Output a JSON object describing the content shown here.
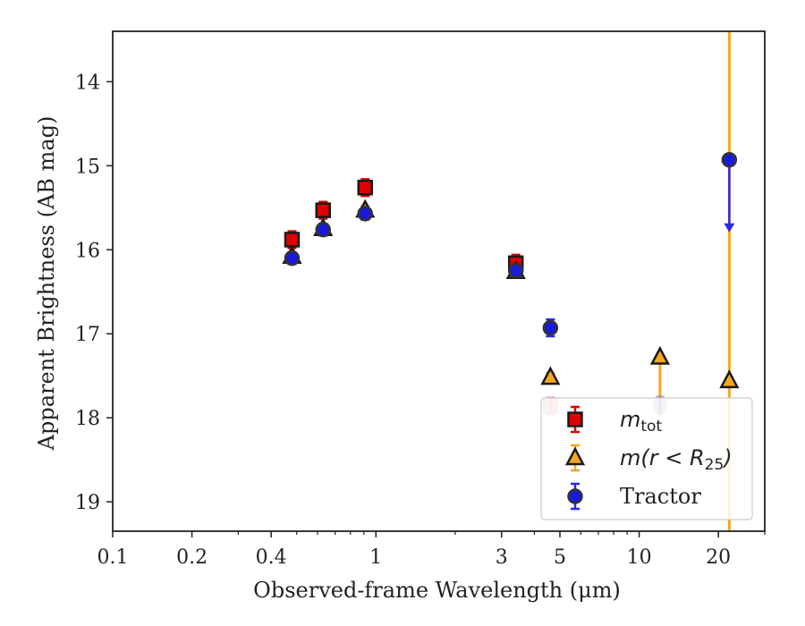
{
  "chart_data": {
    "type": "scatter",
    "xlabel": "Observed-frame Wavelength (μm)",
    "ylabel": "Apparent Brightness (AB mag)",
    "xscale": "log",
    "yaxis_inverted": true,
    "xlim": [
      0.1,
      30
    ],
    "ylim": [
      19.35,
      13.4
    ],
    "x_ticks": [
      {
        "value": 0.1,
        "label": "0.1"
      },
      {
        "value": 0.2,
        "label": "0.2"
      },
      {
        "value": 0.4,
        "label": "0.4"
      },
      {
        "value": 1,
        "label": "1"
      },
      {
        "value": 3,
        "label": "3"
      },
      {
        "value": 5,
        "label": "5"
      },
      {
        "value": 10,
        "label": "10"
      },
      {
        "value": 20,
        "label": "20"
      }
    ],
    "y_ticks": [
      {
        "value": 14,
        "label": "14"
      },
      {
        "value": 15,
        "label": "15"
      },
      {
        "value": 16,
        "label": "16"
      },
      {
        "value": 17,
        "label": "17"
      },
      {
        "value": 18,
        "label": "18"
      },
      {
        "value": 19,
        "label": "19"
      }
    ],
    "grid": false,
    "legend_position": "bottom-right",
    "series": [
      {
        "name": "m_tot",
        "legend_main": "m",
        "legend_sub": "tot",
        "marker": "square",
        "fill": "#e00000",
        "errcolor": "#e00000",
        "points": [
          {
            "x": 0.48,
            "y": 15.88,
            "err": 0.1
          },
          {
            "x": 0.63,
            "y": 15.53,
            "err": 0.1
          },
          {
            "x": 0.91,
            "y": 15.26,
            "err": 0.1
          },
          {
            "x": 3.4,
            "y": 16.16,
            "err": 0.1
          },
          {
            "x": 4.6,
            "y": 17.86,
            "err": 0.1,
            "faded": true
          }
        ]
      },
      {
        "name": "m(r < R_25)",
        "legend_main": "m(r < R",
        "legend_sub": "25",
        "legend_tail": ")",
        "marker": "triangle",
        "fill": "#f5a623",
        "errcolor": "#f5a623",
        "points": [
          {
            "x": 0.48,
            "y": 16.08,
            "err": 0.05
          },
          {
            "x": 0.63,
            "y": 15.75,
            "err": 0.05
          },
          {
            "x": 0.91,
            "y": 15.53,
            "err": 0.05
          },
          {
            "x": 3.4,
            "y": 16.26,
            "err": 0.05
          },
          {
            "x": 4.6,
            "y": 17.52,
            "err": 0.05
          },
          {
            "x": 12.0,
            "y": 17.28,
            "err_low": 0.7,
            "err_high": 0
          },
          {
            "x": 22.0,
            "y": 17.56,
            "full_span": true
          }
        ]
      },
      {
        "name": "Tractor",
        "legend_main": "Tractor",
        "marker": "circle",
        "fill": "#1a1adb",
        "errcolor": "#2a2ae0",
        "points": [
          {
            "x": 0.48,
            "y": 16.1,
            "err": 0.07
          },
          {
            "x": 0.63,
            "y": 15.76,
            "err": 0.07
          },
          {
            "x": 0.91,
            "y": 15.57,
            "err": 0.07
          },
          {
            "x": 3.4,
            "y": 16.25,
            "err": 0.07
          },
          {
            "x": 4.6,
            "y": 16.93,
            "err": 0.1
          },
          {
            "x": 12.0,
            "y": 17.85,
            "err": 0.1,
            "faded": true
          },
          {
            "x": 22.0,
            "y": 14.93,
            "upper_limit_to": 15.75
          }
        ]
      }
    ]
  }
}
